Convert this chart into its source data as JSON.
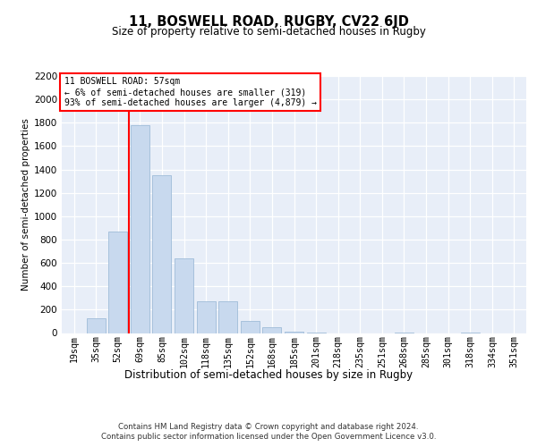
{
  "title": "11, BOSWELL ROAD, RUGBY, CV22 6JD",
  "subtitle": "Size of property relative to semi-detached houses in Rugby",
  "xlabel": "Distribution of semi-detached houses by size in Rugby",
  "ylabel": "Number of semi-detached properties",
  "footer1": "Contains HM Land Registry data © Crown copyright and database right 2024.",
  "footer2": "Contains public sector information licensed under the Open Government Licence v3.0.",
  "annotation_line1": "11 BOSWELL ROAD: 57sqm",
  "annotation_line2": "← 6% of semi-detached houses are smaller (319)",
  "annotation_line3": "93% of semi-detached houses are larger (4,879) →",
  "bar_color": "#c8d9ee",
  "bar_edge_color": "#a0bcd8",
  "background_color": "#e8eef8",
  "grid_color": "#ffffff",
  "categories": [
    "19sqm",
    "35sqm",
    "52sqm",
    "69sqm",
    "85sqm",
    "102sqm",
    "118sqm",
    "135sqm",
    "152sqm",
    "168sqm",
    "185sqm",
    "201sqm",
    "218sqm",
    "235sqm",
    "251sqm",
    "268sqm",
    "285sqm",
    "301sqm",
    "318sqm",
    "334sqm",
    "351sqm"
  ],
  "values": [
    0,
    130,
    870,
    1780,
    1350,
    640,
    275,
    275,
    100,
    50,
    15,
    5,
    0,
    0,
    0,
    5,
    0,
    0,
    5,
    0,
    0
  ],
  "ylim": [
    0,
    2200
  ],
  "yticks": [
    0,
    200,
    400,
    600,
    800,
    1000,
    1200,
    1400,
    1600,
    1800,
    2000,
    2200
  ],
  "red_line_index": 2.5
}
